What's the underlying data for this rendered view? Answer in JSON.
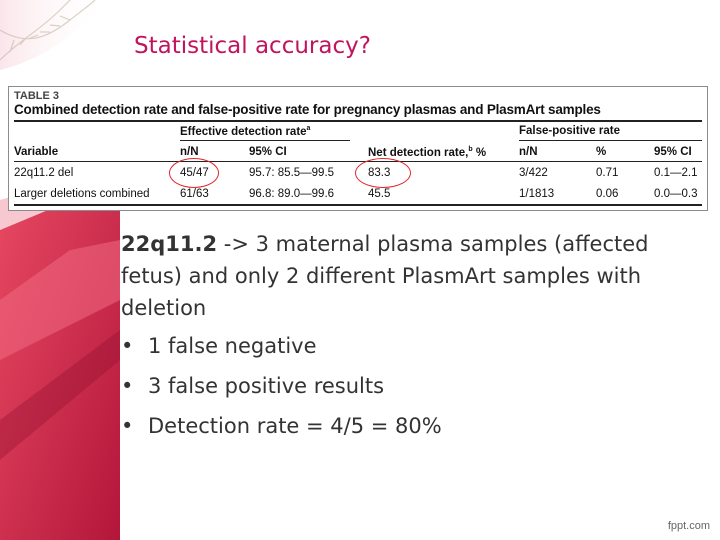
{
  "slide": {
    "title": "Statistical accuracy?"
  },
  "table": {
    "label": "TABLE 3",
    "caption": "Combined detection rate and false-positive rate for pregnancy plasmas and PlasmArt samples",
    "group_headers": {
      "effective": "Effective detection rate",
      "effective_sup": "a",
      "false_positive": "False-positive rate"
    },
    "columns": {
      "variable": "Variable",
      "nn1": "n/N",
      "ci1": "95% CI",
      "net": "Net detection rate,",
      "net_sup": "b",
      "net_unit": "%",
      "nn2": "n/N",
      "pct": "%",
      "ci2": "95% CI"
    },
    "rows": [
      {
        "variable": "22q11.2 del",
        "nn1": "45/47",
        "ci1": "95.7: 85.5—99.5",
        "net": "83.3",
        "nn2": "3/422",
        "pct": "0.71",
        "ci2": "0.1—2.1"
      },
      {
        "variable": "Larger deletions combined",
        "nn1": "61/63",
        "ci1": "96.8: 89.0—99.6",
        "net": "45.5",
        "nn2": "1/1813",
        "pct": "0.06",
        "ci2": "0.0—0.3"
      }
    ]
  },
  "content": {
    "lead_bold": "22q11.2",
    "lead_rest": " -> 3 maternal plasma samples (affected fetus) and only 2 different PlasmArt samples with deletion",
    "bullets": [
      "1 false negative",
      "3 false positive results",
      "Detection rate = 4/5 = 80%"
    ],
    "bullet_glyph": "•"
  },
  "footer": {
    "text": "fppt.com"
  },
  "colors": {
    "title": "#c0145e",
    "accent_red": "#d9234a",
    "circle": "#e3262e",
    "text": "#333333"
  }
}
